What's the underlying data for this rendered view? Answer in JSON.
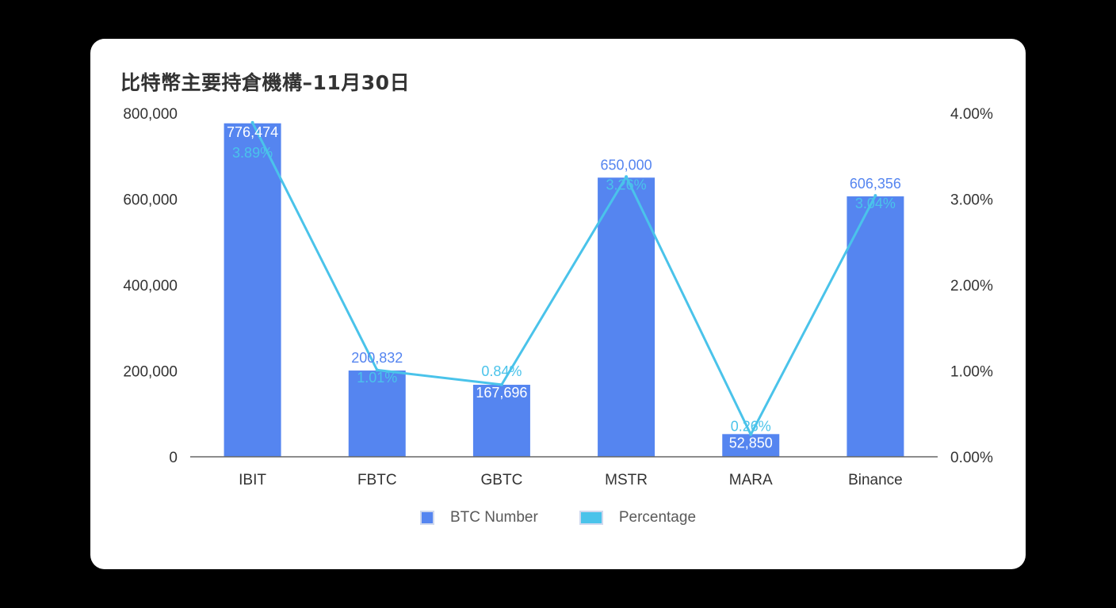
{
  "chart_data": {
    "type": "bar",
    "title": "比特幣主要持倉機構–11月30日",
    "categories": [
      "IBIT",
      "FBTC",
      "GBTC",
      "MSTR",
      "MARA",
      "Binance"
    ],
    "series": [
      {
        "name": "BTC Number",
        "type": "bar",
        "axis": "left",
        "color": "#5585f0",
        "values": [
          776474,
          200832,
          167696,
          650000,
          52850,
          606356
        ],
        "labels": [
          "776,474",
          "200,832",
          "167,696",
          "650,000",
          "52,850",
          "606,356"
        ]
      },
      {
        "name": "Percentage",
        "type": "line",
        "axis": "right",
        "color": "#4ac3ea",
        "values": [
          3.89,
          1.01,
          0.84,
          3.26,
          0.26,
          3.04
        ],
        "labels": [
          "3.89%",
          "1.01%",
          "0.84%",
          "3.26%",
          "0.26%",
          "3.04%"
        ]
      }
    ],
    "y_left": {
      "range": [
        0,
        800000
      ],
      "ticks": [
        "0",
        "200,000",
        "400,000",
        "600,000",
        "800,000"
      ]
    },
    "y_right": {
      "range": [
        0,
        4
      ],
      "ticks": [
        "0.00%",
        "1.00%",
        "2.00%",
        "3.00%",
        "4.00%"
      ]
    },
    "grid": false,
    "legend_position": "bottom"
  }
}
